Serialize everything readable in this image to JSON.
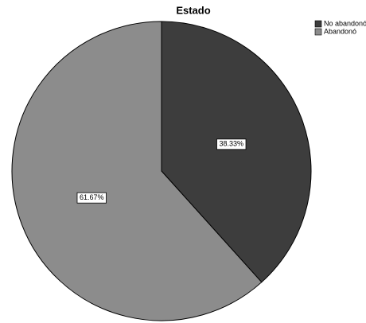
{
  "chart_data": {
    "type": "pie",
    "title": "Estado",
    "categories": [
      "No abandonó",
      "Abandonó"
    ],
    "values": [
      38.33,
      61.67
    ],
    "value_labels": [
      "38.33%",
      "61.67%"
    ],
    "colors": [
      "#3d3d3d",
      "#8c8c8c"
    ],
    "legend": "top-right"
  }
}
